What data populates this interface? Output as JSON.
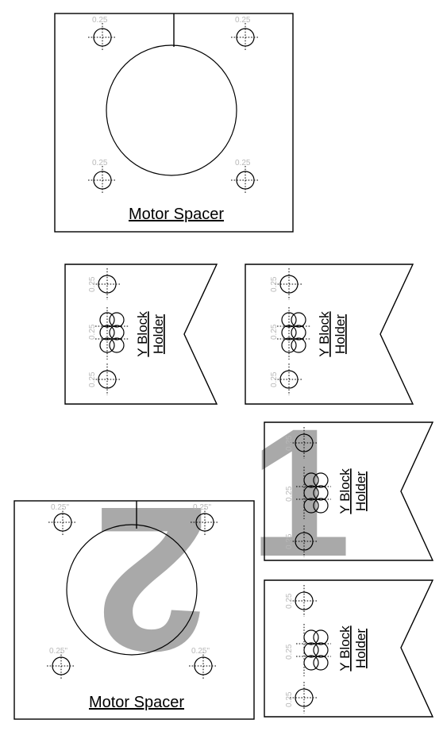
{
  "parts": {
    "motor_spacer_label": "Motor Spacer",
    "y_block_label_line1": "Y Block",
    "y_block_label_line2": "Holder",
    "hole_size": "0.25",
    "hole_size_quoted": "0.25\""
  },
  "markers": {
    "set_one": "1",
    "set_two": "2"
  },
  "colors": {
    "outline": "#000000",
    "dimension_text": "#b8b8b8",
    "numeral_fill": "#a9a9a9",
    "background": "#ffffff"
  }
}
